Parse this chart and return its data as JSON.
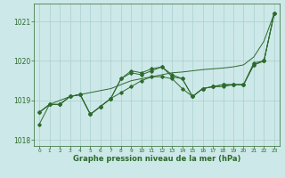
{
  "hours": [
    0,
    1,
    2,
    3,
    4,
    5,
    6,
    7,
    8,
    9,
    10,
    11,
    12,
    13,
    14,
    15,
    16,
    17,
    18,
    19,
    20,
    21,
    22,
    23
  ],
  "line1": [
    1018.7,
    1018.9,
    1018.9,
    1019.1,
    1019.15,
    1018.65,
    1018.85,
    1019.05,
    1019.2,
    1019.35,
    1019.5,
    1019.6,
    1019.6,
    1019.55,
    1019.3,
    1019.1,
    1019.3,
    1019.35,
    1019.35,
    1019.4,
    1019.4,
    1019.9,
    1020.0,
    1021.2
  ],
  "line2": [
    1018.7,
    1018.9,
    1018.9,
    1019.1,
    1019.15,
    1018.65,
    1018.85,
    1019.05,
    1019.55,
    1019.7,
    1019.65,
    1019.75,
    1019.85,
    1019.6,
    1019.55,
    1019.1,
    1019.3,
    1019.35,
    1019.4,
    1019.4,
    1019.4,
    1019.9,
    1020.0,
    1021.2
  ],
  "line3": [
    1018.4,
    1018.9,
    1018.9,
    1019.1,
    1019.15,
    1018.65,
    1018.85,
    1019.05,
    1019.55,
    1019.75,
    1019.7,
    1019.8,
    1019.85,
    1019.65,
    1019.55,
    1019.1,
    1019.3,
    1019.35,
    1019.4,
    1019.4,
    1019.4,
    1019.95,
    1020.0,
    1021.2
  ],
  "line_trend": [
    1018.7,
    1018.9,
    1019.0,
    1019.1,
    1019.15,
    1019.2,
    1019.25,
    1019.3,
    1019.4,
    1019.5,
    1019.55,
    1019.6,
    1019.65,
    1019.7,
    1019.72,
    1019.75,
    1019.78,
    1019.8,
    1019.82,
    1019.85,
    1019.9,
    1020.1,
    1020.5,
    1021.2
  ],
  "bg_color": "#cde8e8",
  "line_color": "#2d6a2d",
  "grid_color": "#aacfcf",
  "xlabel": "Graphe pression niveau de la mer (hPa)",
  "ylim": [
    1017.85,
    1021.45
  ],
  "yticks": [
    1018,
    1019,
    1020,
    1021
  ],
  "xticks": [
    0,
    1,
    2,
    3,
    4,
    5,
    6,
    7,
    8,
    9,
    10,
    11,
    12,
    13,
    14,
    15,
    16,
    17,
    18,
    19,
    20,
    21,
    22,
    23
  ]
}
